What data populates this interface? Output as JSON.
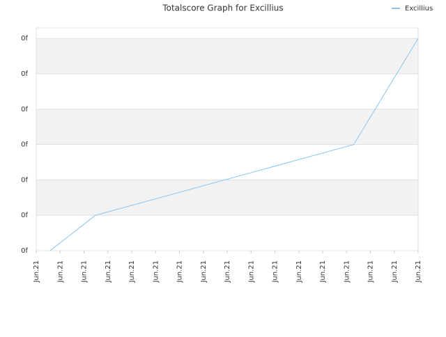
{
  "chart_data": {
    "type": "line",
    "title": "Totalscore Graph for Excillius",
    "x": [
      0.58,
      2.48,
      13.3,
      16
    ],
    "series": [
      {
        "name": "Excillius",
        "color": "#8cc4ee",
        "values": [
          0,
          1,
          3,
          6
        ]
      }
    ],
    "xlim": [
      0,
      16
    ],
    "xticks": [
      {
        "value": 0,
        "label": "Jun.21"
      },
      {
        "value": 1,
        "label": "Jun.21"
      },
      {
        "value": 2,
        "label": "Jun.21"
      },
      {
        "value": 3,
        "label": "Jun.21"
      },
      {
        "value": 4,
        "label": "Jun.21"
      },
      {
        "value": 5,
        "label": "Jun.21"
      },
      {
        "value": 6,
        "label": "Jun.21"
      },
      {
        "value": 7,
        "label": "Jun.21"
      },
      {
        "value": 8,
        "label": "Jun.21"
      },
      {
        "value": 9,
        "label": "Jun.21"
      },
      {
        "value": 10,
        "label": "Jun.21"
      },
      {
        "value": 11,
        "label": "Jun.21"
      },
      {
        "value": 12,
        "label": "Jun.21"
      },
      {
        "value": 13,
        "label": "Jun.21"
      },
      {
        "value": 14,
        "label": "Jun.21"
      },
      {
        "value": 15,
        "label": "Jun.21"
      },
      {
        "value": 16,
        "label": "Jun.21"
      }
    ],
    "ylim": [
      0,
      6.3
    ],
    "yticks": [
      {
        "value": 0,
        "label": "0f"
      },
      {
        "value": 1,
        "label": "0f"
      },
      {
        "value": 2,
        "label": "0f"
      },
      {
        "value": 3,
        "label": "0f"
      },
      {
        "value": 4,
        "label": "0f"
      },
      {
        "value": 5,
        "label": "0f"
      },
      {
        "value": 6,
        "label": "0f"
      }
    ],
    "grid": true,
    "legend": "top-right"
  }
}
